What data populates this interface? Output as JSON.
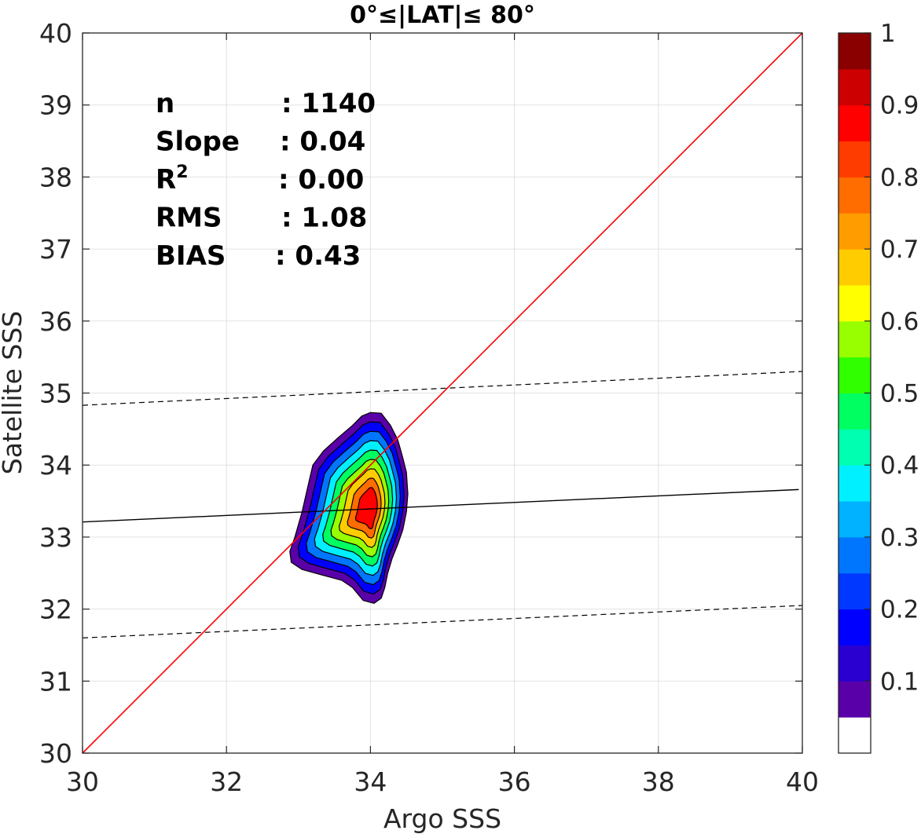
{
  "chart_data": {
    "type": "scatter",
    "title": "0°≤|LAT|≤ 80°",
    "xlabel": "Argo SSS",
    "ylabel": "Satellite SSS",
    "xlim": [
      30,
      40
    ],
    "ylim": [
      30,
      40
    ],
    "xticks": [
      "30",
      "32",
      "34",
      "36",
      "38",
      "40"
    ],
    "yticks": [
      "30",
      "31",
      "32",
      "33",
      "34",
      "35",
      "36",
      "37",
      "38",
      "39",
      "40"
    ],
    "grid": true,
    "stats": [
      {
        "label": "n",
        "sep": ": ",
        "value": "1140"
      },
      {
        "label": "Slope",
        "sep": ": ",
        "value": "0.04"
      },
      {
        "label": "R",
        "sup": "2",
        "sep": ": ",
        "value": "0.00"
      },
      {
        "label": "RMS",
        "sep": ": ",
        "value": "1.08"
      },
      {
        "label": "BIAS",
        "sep": ": ",
        "value": "0.43"
      }
    ],
    "one_to_one_line": {
      "color": "#ff0000",
      "x": [
        30,
        40
      ],
      "y": [
        30,
        40
      ]
    },
    "regression_line": {
      "color": "#000000",
      "x": [
        30,
        39.95
      ],
      "y": [
        33.21,
        33.66
      ]
    },
    "bound_lines": [
      {
        "style": "dashed",
        "x": [
          30,
          40
        ],
        "y": [
          34.83,
          35.3
        ]
      },
      {
        "style": "dashed",
        "x": [
          30,
          40
        ],
        "y": [
          31.6,
          32.05
        ]
      }
    ],
    "density": {
      "center": [
        34.0,
        33.4
      ],
      "levels": [
        0.1,
        0.2,
        0.3,
        0.4,
        0.5,
        0.6,
        0.7,
        0.8,
        0.9
      ],
      "outer_contour": [
        [
          34.0,
          34.73
        ],
        [
          34.15,
          34.72
        ],
        [
          34.28,
          34.55
        ],
        [
          34.38,
          34.35
        ],
        [
          34.45,
          34.1
        ],
        [
          34.5,
          33.9
        ],
        [
          34.52,
          33.6
        ],
        [
          34.5,
          33.35
        ],
        [
          34.45,
          33.1
        ],
        [
          34.38,
          32.9
        ],
        [
          34.3,
          32.7
        ],
        [
          34.24,
          32.5
        ],
        [
          34.2,
          32.3
        ],
        [
          34.15,
          32.15
        ],
        [
          34.05,
          32.08
        ],
        [
          33.9,
          32.12
        ],
        [
          33.75,
          32.3
        ],
        [
          33.6,
          32.4
        ],
        [
          33.3,
          32.48
        ],
        [
          33.05,
          32.55
        ],
        [
          32.9,
          32.65
        ],
        [
          32.88,
          32.8
        ],
        [
          32.95,
          33.0
        ],
        [
          33.05,
          33.35
        ],
        [
          33.13,
          33.7
        ],
        [
          33.2,
          34.0
        ],
        [
          33.35,
          34.2
        ],
        [
          33.55,
          34.38
        ],
        [
          33.75,
          34.55
        ],
        [
          33.88,
          34.68
        ]
      ]
    },
    "colorbar": {
      "ticks": [
        "0.1",
        "0.2",
        "0.3",
        "0.4",
        "0.5",
        "0.6",
        "0.7",
        "0.8",
        "0.9",
        "1"
      ],
      "colors": [
        "#ffffff",
        "#5a00a8",
        "#2a00d0",
        "#0000ff",
        "#0038ff",
        "#0076ff",
        "#00b2ff",
        "#00f0ff",
        "#00ffb0",
        "#00ff60",
        "#30ff00",
        "#98ff00",
        "#ffff00",
        "#ffcc00",
        "#ff9c00",
        "#ff6c00",
        "#ff3c00",
        "#ff0000",
        "#cc0000",
        "#8a0000"
      ]
    }
  }
}
